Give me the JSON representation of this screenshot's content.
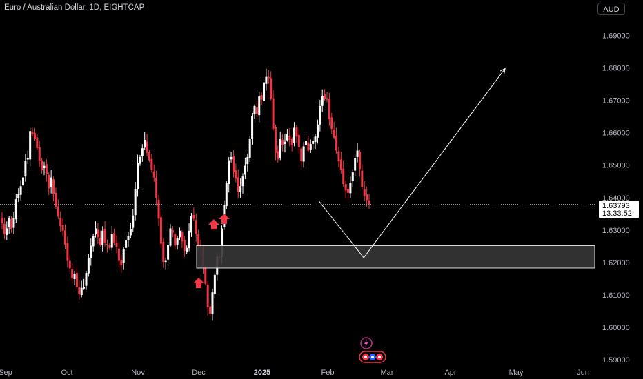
{
  "header": {
    "symbol_title": "Euro / Australian Dollar, 1D, EIGHTCAP",
    "currency_button": "AUD"
  },
  "price_axis": {
    "labels": [
      "1.69000",
      "1.68000",
      "1.67000",
      "1.66000",
      "1.65000",
      "1.64000",
      "1.63000",
      "1.62000",
      "1.61000",
      "1.60000",
      "1.59000"
    ],
    "values": [
      1.69,
      1.68,
      1.67,
      1.66,
      1.65,
      1.64,
      1.63,
      1.62,
      1.61,
      1.6,
      1.59
    ],
    "current_price": "1.63793",
    "countdown": "13:33:52"
  },
  "time_axis": {
    "labels": [
      {
        "text": "Sep",
        "bold": false
      },
      {
        "text": "Oct",
        "bold": false
      },
      {
        "text": "Nov",
        "bold": false
      },
      {
        "text": "Dec",
        "bold": false
      },
      {
        "text": "2025",
        "bold": true
      },
      {
        "text": "Feb",
        "bold": false
      },
      {
        "text": "Mar",
        "bold": false
      },
      {
        "text": "Apr",
        "bold": false
      },
      {
        "text": "May",
        "bold": false
      },
      {
        "text": "Jun",
        "bold": false
      }
    ]
  },
  "chart_data": {
    "type": "candlestick",
    "ylim": [
      1.5875,
      1.6975
    ],
    "current_price": 1.63793,
    "colors": {
      "up": "#ffffff",
      "down": "#f23645",
      "arrow": "#f23645",
      "zone_fill": "#363636",
      "zone_border": "#e0e0e0"
    },
    "zone": {
      "top": 1.6252,
      "bottom": 1.6183
    },
    "projection": [
      {
        "date": "2025-01-28",
        "price": 1.6388
      },
      {
        "date": "2025-02-18",
        "price": 1.6215
      },
      {
        "date": "2025-04-26",
        "price": 1.6798
      }
    ],
    "markers": [
      "arrow-up",
      "arrow-up",
      "arrow-up"
    ],
    "closes": [
      1.6322,
      1.6288,
      1.6305,
      1.6338,
      1.6302,
      1.6338,
      1.6395,
      1.6412,
      1.6435,
      1.6462,
      1.6512,
      1.6522,
      1.6605,
      1.6595,
      1.6582,
      1.6552,
      1.6512,
      1.6485,
      1.6498,
      1.6472,
      1.6428,
      1.6462,
      1.6412,
      1.6372,
      1.6342,
      1.6312,
      1.6298,
      1.6255,
      1.6205,
      1.6182,
      1.6152,
      1.6165,
      1.6125,
      1.6102,
      1.6122,
      1.6125,
      1.6168,
      1.6215,
      1.6252,
      1.6282,
      1.6305,
      1.6278,
      1.6255,
      1.6298,
      1.6262,
      1.6255,
      1.6245,
      1.6288,
      1.6262,
      1.6248,
      1.6205,
      1.6192,
      1.6242,
      1.6268,
      1.6282,
      1.6302,
      1.6345,
      1.6425,
      1.6508,
      1.6525,
      1.6552,
      1.6578,
      1.6538,
      1.6515,
      1.6485,
      1.6462,
      1.6398,
      1.6335,
      1.6258,
      1.6202,
      1.6205,
      1.6255,
      1.6305,
      1.6292,
      1.6252,
      1.6275,
      1.6298,
      1.6265,
      1.6235,
      1.6245,
      1.6298,
      1.6342,
      1.6335,
      1.6288,
      1.6255,
      1.6245,
      1.6188,
      1.6135,
      1.6062,
      1.6042,
      1.6108,
      1.6162,
      1.6218,
      1.6212,
      1.6305,
      1.6378,
      1.6445,
      1.6515,
      1.6525,
      1.6478,
      1.6458,
      1.6418,
      1.6435,
      1.6465,
      1.6498,
      1.6525,
      1.6582,
      1.6652,
      1.6682,
      1.6658,
      1.6712,
      1.6702,
      1.6755,
      1.6772,
      1.6768,
      1.6705,
      1.6612,
      1.6538,
      1.6518,
      1.6582,
      1.6562,
      1.6572,
      1.6595,
      1.6578,
      1.6562,
      1.6615,
      1.6588,
      1.6555,
      1.6512,
      1.6558,
      1.6575,
      1.6545,
      1.6565,
      1.6575,
      1.6588,
      1.6625,
      1.6682,
      1.6712,
      1.6705,
      1.6702,
      1.6642,
      1.6612,
      1.6585,
      1.6545,
      1.6512,
      1.6485,
      1.6442,
      1.6422,
      1.6415,
      1.6445,
      1.6478,
      1.6522,
      1.6545,
      1.6488,
      1.6432,
      1.6405,
      1.6392,
      1.6379
    ]
  }
}
